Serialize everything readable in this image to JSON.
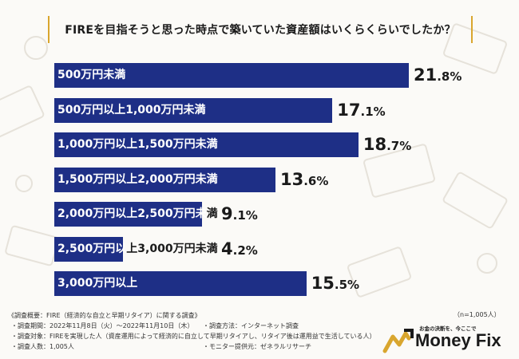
{
  "title": "FIREを目指そうと思った時点で築いていた資産額はいくらくらいでしたか？",
  "chart_data": {
    "type": "bar",
    "orientation": "horizontal",
    "categories": [
      "500万円未満",
      "500万円以上1,000万円未満",
      "1,000万円以上1,500万円未満",
      "1,500万円以上2,000万円未満",
      "2,000万円以上2,500万円未満",
      "2,500万円以上3,000万円未満",
      "3,000万円以上"
    ],
    "values": [
      21.8,
      17.1,
      18.7,
      13.6,
      9.1,
      4.2,
      15.5
    ],
    "value_labels": [
      {
        "num": "21",
        "unit": ".8%"
      },
      {
        "num": "17",
        "unit": ".1%"
      },
      {
        "num": "18",
        "unit": ".7%"
      },
      {
        "num": "13",
        "unit": ".6%"
      },
      {
        "num": "9",
        "unit": ".1%"
      },
      {
        "num": "4",
        "unit": ".2%"
      },
      {
        "num": "15",
        "unit": ".5%"
      }
    ],
    "unit": "%",
    "colors": {
      "bar": "#1e2f86",
      "accent": "#d9a62e"
    }
  },
  "footer": {
    "survey_title": "《調査概要：FIRE（経済的な自立と早期リタイア）に関する調査》",
    "period": "・調査期間：2022年11月8日（火）～2022年11月10日（木）",
    "method": "・調査方法：インターネット調査",
    "target": "・調査対象：FIREを実現した人（資産運用によって経済的に自立して早期リタイアし、リタイア後は運用益で生活している人）",
    "count": "・調査人数：1,005人",
    "provider": "・モニター提供元：ゼネラルリサーチ",
    "n": "（n=1,005人）"
  },
  "brand": {
    "tagline": "お金の決断を、今ここで",
    "name": "Money Fix"
  }
}
